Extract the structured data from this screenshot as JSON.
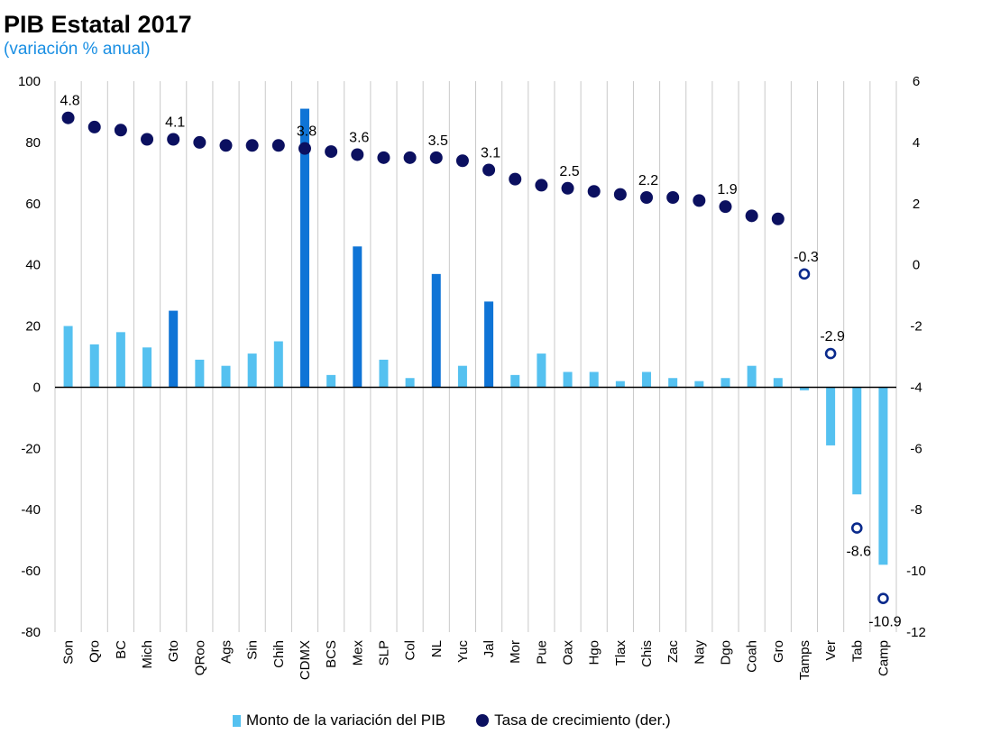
{
  "title": "PIB Estatal 2017",
  "subtitle": "(variación % anual)",
  "colors": {
    "bar_light": "#55c1f0",
    "bar_dark": "#0f74d6",
    "dot": "#0b1060",
    "grid": "#c9c9c9",
    "title": "#000000",
    "subtitle": "#1a8fe3"
  },
  "chart_data": {
    "type": "bar+scatter",
    "title": "PIB Estatal 2017",
    "subtitle": "(variación % anual)",
    "categories": [
      "Son",
      "Qro",
      "BC",
      "Mich",
      "Gto",
      "QRoo",
      "Ags",
      "Sin",
      "Chih",
      "CDMX",
      "BCS",
      "Mex",
      "SLP",
      "Col",
      "NL",
      "Yuc",
      "Jal",
      "Mor",
      "Pue",
      "Oax",
      "Hgo",
      "Tlax",
      "Chis",
      "Zac",
      "Nay",
      "Dgo",
      "Coah",
      "Gro",
      "Tamps",
      "Ver",
      "Tab",
      "Camp"
    ],
    "left_axis": {
      "min": -80,
      "max": 100,
      "ticks": [
        100,
        80,
        60,
        40,
        20,
        0,
        -20,
        -40,
        -60,
        -80
      ]
    },
    "right_axis": {
      "min": -12,
      "max": 6,
      "ticks": [
        6,
        4,
        2,
        0,
        -2,
        -4,
        -6,
        -8,
        -10,
        -12
      ]
    },
    "series": [
      {
        "name": "Monto de la variación del PIB",
        "type": "bar",
        "axis": "left",
        "values": [
          20,
          14,
          18,
          13,
          25,
          9,
          7,
          11,
          15,
          91,
          4,
          46,
          9,
          3,
          37,
          7,
          28,
          4,
          11,
          5,
          5,
          2,
          5,
          3,
          2,
          3,
          7,
          3,
          -1,
          -19,
          -35,
          -58
        ],
        "highlight": [
          false,
          false,
          false,
          false,
          true,
          false,
          false,
          false,
          false,
          true,
          false,
          true,
          false,
          false,
          true,
          false,
          true,
          false,
          false,
          false,
          false,
          false,
          false,
          false,
          false,
          false,
          false,
          false,
          false,
          false,
          false,
          false
        ]
      },
      {
        "name": "Tasa de crecimiento (der.)",
        "type": "scatter",
        "axis": "right",
        "values": [
          4.8,
          4.5,
          4.4,
          4.1,
          4.1,
          4.0,
          3.9,
          3.9,
          3.9,
          3.8,
          3.7,
          3.6,
          3.5,
          3.5,
          3.5,
          3.4,
          3.1,
          2.8,
          2.6,
          2.5,
          2.4,
          2.3,
          2.2,
          2.2,
          2.1,
          1.9,
          1.6,
          1.5,
          -0.3,
          -2.9,
          -8.6,
          -10.9
        ],
        "hollow_from_index": 28
      }
    ],
    "data_labels": [
      {
        "index": 0,
        "text": "4.8",
        "pos": "above"
      },
      {
        "index": 4,
        "text": "4.1",
        "pos": "above"
      },
      {
        "index": 9,
        "text": "3.8",
        "pos": "above"
      },
      {
        "index": 11,
        "text": "3.6",
        "pos": "above"
      },
      {
        "index": 14,
        "text": "3.5",
        "pos": "above"
      },
      {
        "index": 16,
        "text": "3.1",
        "pos": "above"
      },
      {
        "index": 19,
        "text": "2.5",
        "pos": "above"
      },
      {
        "index": 22,
        "text": "2.2",
        "pos": "above"
      },
      {
        "index": 25,
        "text": "1.9",
        "pos": "above"
      },
      {
        "index": 28,
        "text": "-0.3",
        "pos": "above"
      },
      {
        "index": 29,
        "text": "-2.9",
        "pos": "above"
      },
      {
        "index": 30,
        "text": "-8.6",
        "pos": "below"
      },
      {
        "index": 31,
        "text": "-10.9",
        "pos": "below"
      }
    ],
    "legend": [
      "Monto de la variación del PIB",
      "Tasa de crecimiento (der.)"
    ]
  }
}
